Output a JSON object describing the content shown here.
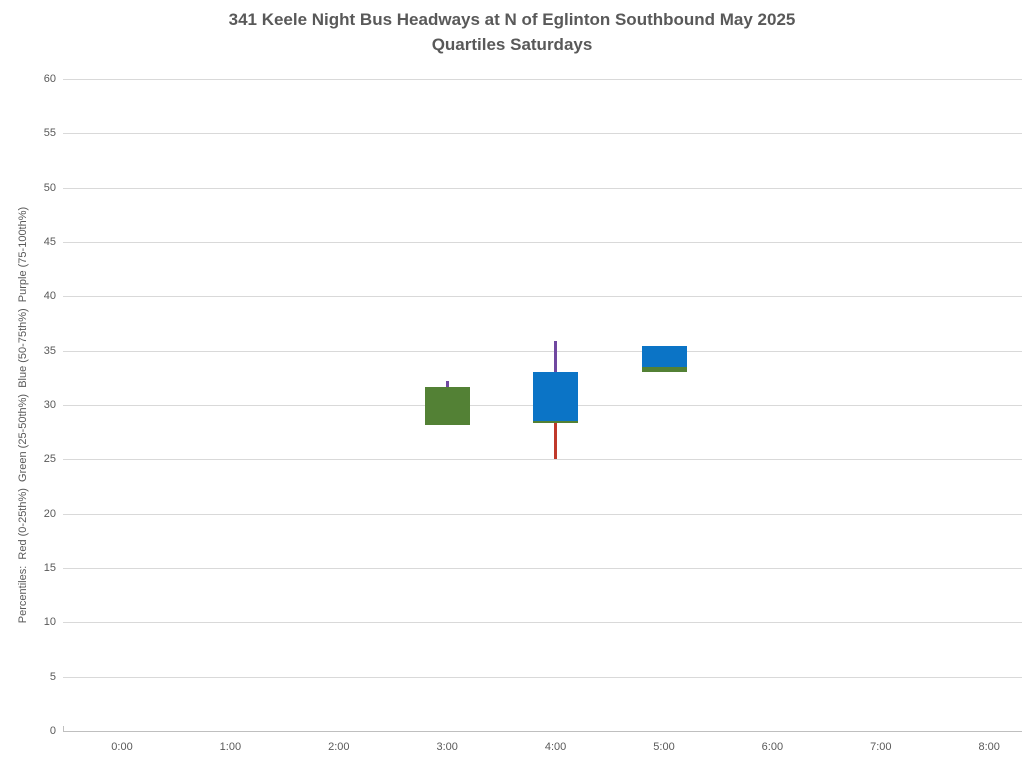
{
  "title": {
    "line1": "341 Keele Night Bus Headways at N of Eglinton Southbound May 2025",
    "line2": "Quartiles Saturdays"
  },
  "chart_data": {
    "type": "candlestick",
    "title": "341 Keele Night Bus Headways at N of Eglinton Southbound May 2025",
    "subtitle": "Quartiles Saturdays",
    "xlabel": "",
    "ylabel": "Percentiles:  Red (0-25th%)  Green (25-50th%)  Blue (50-75th%)  Purple (75-100th%)",
    "ylim": [
      0,
      60
    ],
    "y_tick_step": 5,
    "y_ticks": [
      0,
      5,
      10,
      15,
      20,
      25,
      30,
      35,
      40,
      45,
      50,
      55,
      60
    ],
    "x_ticks": [
      "0:00",
      "1:00",
      "2:00",
      "3:00",
      "4:00",
      "5:00",
      "6:00",
      "7:00",
      "8:00"
    ],
    "grid": true,
    "legend_position": "none",
    "segment_colors": {
      "red_0_25th": "#c0392b",
      "green_25_50th": "#538135",
      "blue_50_75th": "#0b74c6",
      "purple_75_100th": "#7048a0"
    },
    "points": [
      {
        "x": "3:00",
        "min": 28.2,
        "q1": 28.2,
        "median": 31.7,
        "q3": 31.7,
        "max": 32.2
      },
      {
        "x": "4:00",
        "min": 25.0,
        "q1": 28.3,
        "median": 28.5,
        "q3": 33.0,
        "max": 35.9
      },
      {
        "x": "5:00",
        "min": 33.0,
        "q1": 33.0,
        "median": 33.5,
        "q3": 35.4,
        "max": 35.4
      }
    ]
  }
}
